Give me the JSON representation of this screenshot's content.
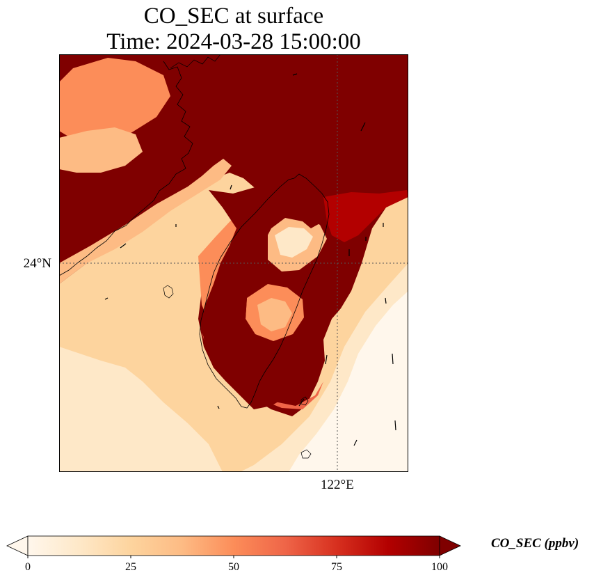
{
  "title": {
    "line1": "CO_SEC at surface",
    "line2": "Time: 2024-03-28 15:00:00"
  },
  "axes": {
    "lat_label": "24°N",
    "lon_label": "122°E"
  },
  "colorbar": {
    "label": "CO_SEC (ppbv)",
    "min": 0,
    "max": 100,
    "ticks": [
      "0",
      "25",
      "50",
      "75",
      "100"
    ],
    "extend": "both",
    "colormap": "OrRd",
    "colors": [
      "#fff7ec",
      "#fee8c8",
      "#fdd49e",
      "#fdbb84",
      "#fc8d59",
      "#ef6548",
      "#d7301f",
      "#b30000",
      "#7f0000"
    ]
  },
  "map": {
    "gridlines": "dotted",
    "coastline_color": "#000000",
    "background_value_color": "#7f0000",
    "features": [
      "coastline",
      "wind-vectors",
      "co-concentration-field"
    ]
  }
}
